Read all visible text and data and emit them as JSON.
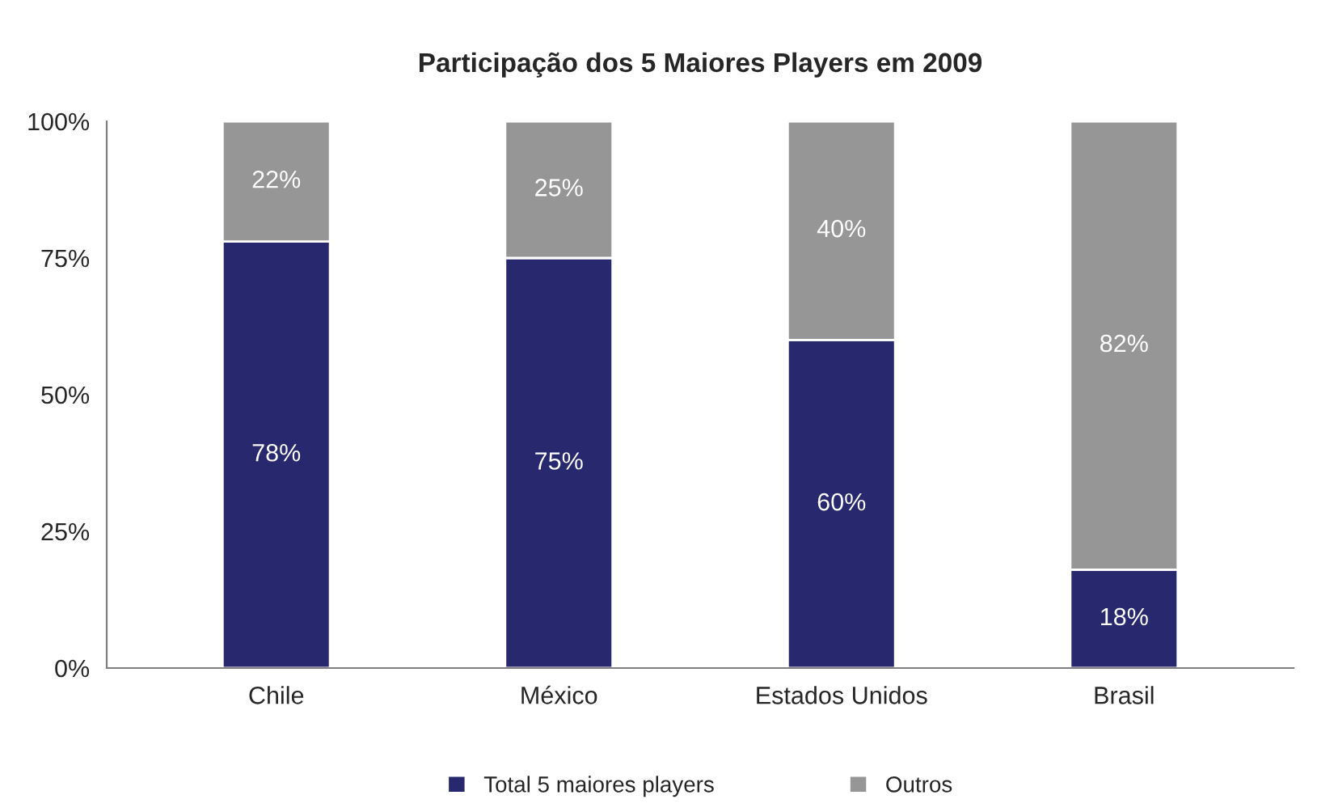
{
  "chart_data": {
    "type": "bar",
    "title": "Participação dos 5 Maiores Players em 2009",
    "categories": [
      "Chile",
      "México",
      "Estados Unidos",
      "Brasil"
    ],
    "stacked": true,
    "series": [
      {
        "name": "Total 5 maiores players",
        "color": "#28286e",
        "values": [
          78,
          75,
          60,
          18
        ],
        "value_labels": [
          "78%",
          "75%",
          "60%",
          "18%"
        ]
      },
      {
        "name": "Outros",
        "color": "#969696",
        "values": [
          22,
          25,
          40,
          82
        ],
        "value_labels": [
          "22%",
          "25%",
          "40%",
          "82%"
        ]
      }
    ],
    "ylim": [
      0,
      100
    ],
    "yticks": [
      {
        "value": 0,
        "label": "0%"
      },
      {
        "value": 25,
        "label": "25%"
      },
      {
        "value": 50,
        "label": "50%"
      },
      {
        "value": 75,
        "label": "75%"
      },
      {
        "value": 100,
        "label": "100%"
      }
    ],
    "grid": false,
    "legend": "bottom"
  }
}
